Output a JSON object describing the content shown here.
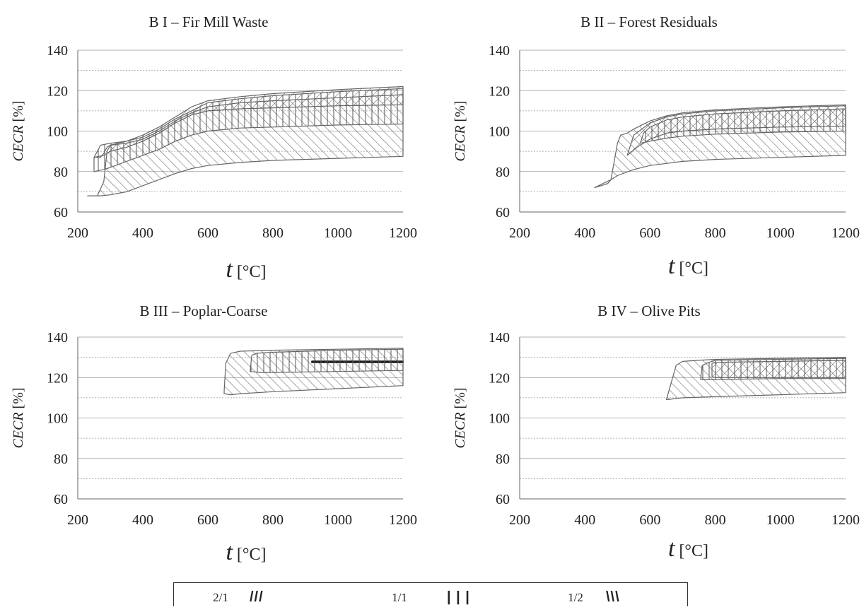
{
  "chart_data": [
    {
      "type": "area",
      "title": "B I – Fir Mill Waste",
      "xlabel": "t [°C]",
      "ylabel": "CECR [%]",
      "xlim": [
        200,
        1200
      ],
      "ylim": [
        60,
        140
      ],
      "xticks": [
        "200",
        "400",
        "600",
        "800",
        "1000",
        "1200"
      ],
      "yticks": [
        "60",
        "80",
        "100",
        "120",
        "140"
      ],
      "grid": true,
      "series": [
        {
          "name": "2/1",
          "hatch": "forward",
          "upper": [
            [
              250,
              87
            ],
            [
              270,
              87
            ],
            [
              280,
              89
            ],
            [
              290,
              92
            ],
            [
              300,
              93
            ],
            [
              350,
              95
            ],
            [
              400,
              98
            ],
            [
              450,
              102
            ],
            [
              500,
              107
            ],
            [
              550,
              112
            ],
            [
              600,
              115
            ],
            [
              700,
              117
            ],
            [
              800,
              118.5
            ],
            [
              1000,
              120.5
            ],
            [
              1200,
              122
            ]
          ],
          "lower": [
            [
              250,
              87
            ],
            [
              280,
              88
            ],
            [
              300,
              90
            ],
            [
              350,
              92
            ],
            [
              400,
              95
            ],
            [
              450,
              99
            ],
            [
              500,
              104
            ],
            [
              550,
              108
            ],
            [
              600,
              110
            ],
            [
              700,
              111
            ],
            [
              800,
              111.5
            ],
            [
              1000,
              112.5
            ],
            [
              1200,
              113
            ]
          ]
        },
        {
          "name": "1/1",
          "hatch": "vertical",
          "upper": [
            [
              250,
              87
            ],
            [
              270,
              93
            ],
            [
              300,
              94
            ],
            [
              350,
              95
            ],
            [
              400,
              97
            ],
            [
              450,
              101
            ],
            [
              500,
              106
            ],
            [
              550,
              110
            ],
            [
              600,
              114
            ],
            [
              700,
              116
            ],
            [
              800,
              117.5
            ],
            [
              1000,
              119.5
            ],
            [
              1200,
              121
            ]
          ],
          "lower": [
            [
              250,
              80
            ],
            [
              280,
              81
            ],
            [
              300,
              82
            ],
            [
              350,
              85
            ],
            [
              400,
              88
            ],
            [
              450,
              91
            ],
            [
              500,
              95
            ],
            [
              550,
              98
            ],
            [
              600,
              100
            ],
            [
              700,
              101.5
            ],
            [
              800,
              102
            ],
            [
              1000,
              103
            ],
            [
              1200,
              103.5
            ]
          ]
        },
        {
          "name": "1/2",
          "hatch": "backward",
          "upper": [
            [
              230,
              68
            ],
            [
              260,
              68
            ],
            [
              280,
              75
            ],
            [
              290,
              90
            ],
            [
              300,
              93
            ],
            [
              350,
              94
            ],
            [
              400,
              96
            ],
            [
              450,
              100
            ],
            [
              500,
              105
            ],
            [
              550,
              109
            ],
            [
              600,
              112
            ],
            [
              700,
              114
            ],
            [
              800,
              115
            ],
            [
              1000,
              116.5
            ],
            [
              1200,
              118
            ]
          ],
          "lower": [
            [
              230,
              68
            ],
            [
              270,
              68
            ],
            [
              300,
              68.5
            ],
            [
              350,
              70
            ],
            [
              400,
              73
            ],
            [
              450,
              76
            ],
            [
              500,
              79
            ],
            [
              550,
              81.5
            ],
            [
              600,
              83
            ],
            [
              700,
              84.5
            ],
            [
              800,
              85.5
            ],
            [
              1000,
              86.5
            ],
            [
              1200,
              87.5
            ]
          ]
        }
      ]
    },
    {
      "type": "area",
      "title": "B II – Forest Residuals",
      "xlabel": "t [°C]",
      "ylabel": "CECR [%]",
      "xlim": [
        200,
        1200
      ],
      "ylim": [
        60,
        140
      ],
      "xticks": [
        "200",
        "400",
        "600",
        "800",
        "1000",
        "1200"
      ],
      "yticks": [
        "60",
        "80",
        "100",
        "120",
        "140"
      ],
      "grid": true,
      "series": [
        {
          "name": "2/1",
          "hatch": "forward",
          "upper": [
            [
              530,
              88
            ],
            [
              550,
              98
            ],
            [
              600,
              104
            ],
            [
              650,
              107
            ],
            [
              700,
              108.5
            ],
            [
              800,
              110
            ],
            [
              1000,
              111.5
            ],
            [
              1200,
              112.5
            ]
          ],
          "lower": [
            [
              530,
              88
            ],
            [
              560,
              92
            ],
            [
              600,
              96
            ],
            [
              650,
              99
            ],
            [
              700,
              100
            ],
            [
              800,
              101
            ],
            [
              1000,
              102
            ],
            [
              1200,
              102.5
            ]
          ]
        },
        {
          "name": "1/1",
          "hatch": "vertical",
          "upper": [
            [
              570,
              94
            ],
            [
              580,
              99
            ],
            [
              600,
              102
            ],
            [
              650,
              105.5
            ],
            [
              700,
              107
            ],
            [
              800,
              108.5
            ],
            [
              1000,
              110
            ],
            [
              1200,
              111
            ]
          ],
          "lower": [
            [
              570,
              94
            ],
            [
              600,
              95
            ],
            [
              650,
              96.5
            ],
            [
              700,
              97.5
            ],
            [
              800,
              98.5
            ],
            [
              1000,
              99.5
            ],
            [
              1200,
              100
            ]
          ]
        },
        {
          "name": "1/2",
          "hatch": "backward",
          "upper": [
            [
              430,
              72
            ],
            [
              470,
              74
            ],
            [
              480,
              76
            ],
            [
              500,
              94
            ],
            [
              510,
              98
            ],
            [
              530,
              99
            ],
            [
              550,
              101
            ],
            [
              600,
              105
            ],
            [
              650,
              107.5
            ],
            [
              700,
              109
            ],
            [
              800,
              110.5
            ],
            [
              1000,
              112
            ],
            [
              1200,
              113
            ]
          ],
          "lower": [
            [
              430,
              72
            ],
            [
              480,
              76
            ],
            [
              500,
              78
            ],
            [
              550,
              81
            ],
            [
              600,
              83
            ],
            [
              650,
              84
            ],
            [
              700,
              85
            ],
            [
              800,
              86
            ],
            [
              1000,
              87
            ],
            [
              1200,
              88
            ]
          ]
        }
      ]
    },
    {
      "type": "area",
      "title": "B III – Poplar-Coarse",
      "xlabel": "t [°C]",
      "ylabel": "CECR [%]",
      "xlim": [
        200,
        1200
      ],
      "ylim": [
        60,
        140
      ],
      "xticks": [
        "200",
        "400",
        "600",
        "800",
        "1000",
        "1200"
      ],
      "yticks": [
        "60",
        "80",
        "100",
        "120",
        "140"
      ],
      "grid": true,
      "series": [
        {
          "name": "2/1",
          "hatch": "forward",
          "upper": [
            [
              920,
              128
            ],
            [
              1200,
              128
            ]
          ],
          "lower": [
            [
              920,
              127.5
            ],
            [
              1200,
              127.5
            ]
          ]
        },
        {
          "name": "1/1",
          "hatch": "vertical",
          "upper": [
            [
              730,
              123
            ],
            [
              735,
              131
            ],
            [
              750,
              132
            ],
            [
              800,
              132.5
            ],
            [
              1000,
              133.5
            ],
            [
              1200,
              134
            ]
          ],
          "lower": [
            [
              730,
              123
            ],
            [
              760,
              122.5
            ],
            [
              800,
              122.5
            ],
            [
              1000,
              123
            ],
            [
              1200,
              123.5
            ]
          ]
        },
        {
          "name": "1/2",
          "hatch": "backward",
          "upper": [
            [
              650,
              113
            ],
            [
              655,
              127
            ],
            [
              670,
              132
            ],
            [
              700,
              133
            ],
            [
              800,
              133.5
            ],
            [
              1000,
              134
            ],
            [
              1200,
              134.5
            ]
          ],
          "lower": [
            [
              650,
              112
            ],
            [
              670,
              111.5
            ],
            [
              700,
              112
            ],
            [
              800,
              113
            ],
            [
              1000,
              114.5
            ],
            [
              1200,
              116
            ]
          ]
        }
      ]
    },
    {
      "type": "area",
      "title": "B IV – Olive Pits",
      "xlabel": "t [°C]",
      "ylabel": "CECR [%]",
      "xlim": [
        200,
        1200
      ],
      "ylim": [
        60,
        140
      ],
      "xticks": [
        "200",
        "400",
        "600",
        "800",
        "1000",
        "1200"
      ],
      "yticks": [
        "60",
        "80",
        "100",
        "120",
        "140"
      ],
      "grid": true,
      "series": [
        {
          "name": "2/1",
          "hatch": "forward",
          "upper": [
            [
              790,
              127
            ],
            [
              800,
              127.5
            ],
            [
              1000,
              128
            ],
            [
              1200,
              128.5
            ]
          ],
          "lower": [
            [
              790,
              120.5
            ],
            [
              800,
              120
            ],
            [
              1000,
              120
            ],
            [
              1200,
              120
            ]
          ]
        },
        {
          "name": "1/1",
          "hatch": "vertical",
          "upper": [
            [
              755,
              119
            ],
            [
              760,
              126
            ],
            [
              780,
              127.5
            ],
            [
              800,
              128.5
            ],
            [
              1000,
              129
            ],
            [
              1200,
              129.5
            ]
          ],
          "lower": [
            [
              755,
              119
            ],
            [
              780,
              119
            ],
            [
              800,
              119
            ],
            [
              1000,
              119.5
            ],
            [
              1200,
              119.5
            ]
          ]
        },
        {
          "name": "1/2",
          "hatch": "backward",
          "upper": [
            [
              650,
              109
            ],
            [
              680,
              126
            ],
            [
              700,
              128
            ],
            [
              750,
              128.5
            ],
            [
              800,
              129
            ],
            [
              1000,
              129.5
            ],
            [
              1200,
              130
            ]
          ],
          "lower": [
            [
              650,
              109
            ],
            [
              700,
              110
            ],
            [
              800,
              110.5
            ],
            [
              1000,
              111.5
            ],
            [
              1200,
              112.5
            ]
          ]
        }
      ]
    }
  ],
  "legend": {
    "items": [
      {
        "label": "2/1",
        "symbol": "///"
      },
      {
        "label": "1/1",
        "symbol": "| | |"
      },
      {
        "label": "1/2",
        "symbol": "\\\\\\"
      }
    ]
  }
}
